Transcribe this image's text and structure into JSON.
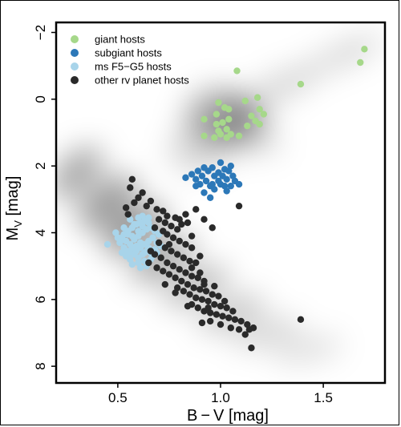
{
  "chart_data": {
    "type": "scatter",
    "xlabel": "B − V  [mag]",
    "ylabel_main": "M",
    "ylabel_sub": "V",
    "ylabel_unit": " [mag]",
    "xlim": [
      0.2,
      1.8
    ],
    "ylim": [
      8.5,
      -2.3
    ],
    "y_inverted": true,
    "x_ticks": [
      {
        "value": 0.5,
        "label": "0.5"
      },
      {
        "value": 1.0,
        "label": "1.0"
      },
      {
        "value": 1.5,
        "label": "1.5"
      }
    ],
    "y_ticks": [
      {
        "value": -2,
        "label": "−2"
      },
      {
        "value": 0,
        "label": "0"
      },
      {
        "value": 2,
        "label": "2"
      },
      {
        "value": 4,
        "label": "4"
      },
      {
        "value": 6,
        "label": "6"
      },
      {
        "value": 8,
        "label": "8"
      }
    ],
    "legend_position": "top-left",
    "background": "grey density of field stars (HR diagram)",
    "series": [
      {
        "name": "giant hosts",
        "color": "#a6d88a",
        "points": [
          [
            1.68,
            -1.1
          ],
          [
            1.7,
            -1.5
          ],
          [
            1.08,
            -0.85
          ],
          [
            1.39,
            -0.45
          ],
          [
            0.99,
            0.1
          ],
          [
            1.02,
            0.25
          ],
          [
            1.04,
            0.3
          ],
          [
            1.12,
            0.05
          ],
          [
            1.18,
            -0.05
          ],
          [
            1.19,
            0.3
          ],
          [
            0.98,
            0.45
          ],
          [
            1.21,
            0.45
          ],
          [
            0.92,
            0.6
          ],
          [
            0.98,
            0.75
          ],
          [
            1.01,
            0.7
          ],
          [
            1.04,
            0.6
          ],
          [
            1.15,
            0.5
          ],
          [
            1.17,
            0.65
          ],
          [
            1.19,
            0.75
          ],
          [
            1.13,
            0.8
          ],
          [
            0.99,
            0.95
          ],
          [
            1.03,
            0.9
          ],
          [
            1.0,
            1.05
          ],
          [
            1.05,
            1.05
          ],
          [
            0.92,
            1.1
          ],
          [
            0.97,
            1.15
          ],
          [
            1.03,
            1.15
          ],
          [
            1.09,
            1.1
          ]
        ]
      },
      {
        "name": "subgiant hosts",
        "color": "#2c78b8",
        "points": [
          [
            1.0,
            1.9
          ],
          [
            1.05,
            2.0
          ],
          [
            0.92,
            2.05
          ],
          [
            0.96,
            2.05
          ],
          [
            1.02,
            2.1
          ],
          [
            0.89,
            2.15
          ],
          [
            0.94,
            2.15
          ],
          [
            0.99,
            2.2
          ],
          [
            1.04,
            2.15
          ],
          [
            0.86,
            2.25
          ],
          [
            0.91,
            2.3
          ],
          [
            0.97,
            2.3
          ],
          [
            1.01,
            2.3
          ],
          [
            1.06,
            2.3
          ],
          [
            0.83,
            2.35
          ],
          [
            0.88,
            2.4
          ],
          [
            0.93,
            2.45
          ],
          [
            0.99,
            2.45
          ],
          [
            1.03,
            2.4
          ],
          [
            1.07,
            2.45
          ],
          [
            0.9,
            2.55
          ],
          [
            0.95,
            2.6
          ],
          [
            1.0,
            2.55
          ],
          [
            1.05,
            2.6
          ],
          [
            1.09,
            2.55
          ],
          [
            0.97,
            2.7
          ],
          [
            1.03,
            2.75
          ],
          [
            0.92,
            2.8
          ],
          [
            0.96,
            2.55
          ],
          [
            0.95,
            2.95
          ],
          [
            1.02,
            2.6
          ],
          [
            0.88,
            2.6
          ]
        ]
      },
      {
        "name": "ms F5−G5 hosts",
        "color": "#a8d4ea",
        "points": [
          [
            0.45,
            4.35
          ],
          [
            0.53,
            4.05
          ],
          [
            0.55,
            3.95
          ],
          [
            0.57,
            3.85
          ],
          [
            0.59,
            3.75
          ],
          [
            0.61,
            3.7
          ],
          [
            0.63,
            3.65
          ],
          [
            0.65,
            3.7
          ],
          [
            0.56,
            3.6
          ],
          [
            0.6,
            3.55
          ],
          [
            0.52,
            4.15
          ],
          [
            0.54,
            4.25
          ],
          [
            0.56,
            4.35
          ],
          [
            0.58,
            4.2
          ],
          [
            0.6,
            4.1
          ],
          [
            0.62,
            4.0
          ],
          [
            0.64,
            3.9
          ],
          [
            0.66,
            3.85
          ],
          [
            0.68,
            3.95
          ],
          [
            0.53,
            4.45
          ],
          [
            0.55,
            4.55
          ],
          [
            0.57,
            4.45
          ],
          [
            0.59,
            4.55
          ],
          [
            0.61,
            4.45
          ],
          [
            0.63,
            4.35
          ],
          [
            0.65,
            4.25
          ],
          [
            0.67,
            4.15
          ],
          [
            0.69,
            4.3
          ],
          [
            0.54,
            4.7
          ],
          [
            0.56,
            4.8
          ],
          [
            0.58,
            4.65
          ],
          [
            0.6,
            4.75
          ],
          [
            0.62,
            4.65
          ],
          [
            0.64,
            4.55
          ],
          [
            0.66,
            4.6
          ],
          [
            0.68,
            4.5
          ],
          [
            0.57,
            4.95
          ],
          [
            0.6,
            4.9
          ],
          [
            0.63,
            4.85
          ],
          [
            0.66,
            4.8
          ],
          [
            0.61,
            5.05
          ],
          [
            0.64,
            5.0
          ],
          [
            0.58,
            3.75
          ],
          [
            0.62,
            3.8
          ],
          [
            0.53,
            3.85
          ],
          [
            0.51,
            4.3
          ],
          [
            0.5,
            4.15
          ],
          [
            0.57,
            4.1
          ],
          [
            0.61,
            4.3
          ],
          [
            0.65,
            4.45
          ],
          [
            0.67,
            4.7
          ],
          [
            0.55,
            4.05
          ],
          [
            0.59,
            4.4
          ],
          [
            0.63,
            4.6
          ],
          [
            0.6,
            3.95
          ],
          [
            0.7,
            4.05
          ],
          [
            0.71,
            4.4
          ],
          [
            0.49,
            4.0
          ],
          [
            0.52,
            4.6
          ],
          [
            0.65,
            3.55
          ],
          [
            0.62,
            3.5
          ],
          [
            0.56,
            4.6
          ],
          [
            0.69,
            4.6
          ]
        ]
      },
      {
        "name": "other rv planet hosts",
        "color": "#2a2a2a",
        "points": [
          [
            0.57,
            2.4
          ],
          [
            0.56,
            2.65
          ],
          [
            0.6,
            2.95
          ],
          [
            0.62,
            2.8
          ],
          [
            0.66,
            3.05
          ],
          [
            0.64,
            3.2
          ],
          [
            0.58,
            3.1
          ],
          [
            0.54,
            3.25
          ],
          [
            0.55,
            3.45
          ],
          [
            0.69,
            3.3
          ],
          [
            0.72,
            3.35
          ],
          [
            0.74,
            3.5
          ],
          [
            0.78,
            3.55
          ],
          [
            0.7,
            3.6
          ],
          [
            0.73,
            3.7
          ],
          [
            0.76,
            3.8
          ],
          [
            0.79,
            3.9
          ],
          [
            0.81,
            3.75
          ],
          [
            0.84,
            3.7
          ],
          [
            0.83,
            3.45
          ],
          [
            0.88,
            3.3
          ],
          [
            0.92,
            3.6
          ],
          [
            0.96,
            3.85
          ],
          [
            1.09,
            3.2
          ],
          [
            0.72,
            3.95
          ],
          [
            0.74,
            4.05
          ],
          [
            0.77,
            4.15
          ],
          [
            0.8,
            4.25
          ],
          [
            0.83,
            4.35
          ],
          [
            0.86,
            4.45
          ],
          [
            0.7,
            4.3
          ],
          [
            0.73,
            4.45
          ],
          [
            0.76,
            4.55
          ],
          [
            0.79,
            4.65
          ],
          [
            0.82,
            4.75
          ],
          [
            0.85,
            4.85
          ],
          [
            0.88,
            4.9
          ],
          [
            0.71,
            4.75
          ],
          [
            0.74,
            4.9
          ],
          [
            0.77,
            5.0
          ],
          [
            0.8,
            5.1
          ],
          [
            0.83,
            5.2
          ],
          [
            0.86,
            5.3
          ],
          [
            0.89,
            5.35
          ],
          [
            0.92,
            5.45
          ],
          [
            0.72,
            5.15
          ],
          [
            0.75,
            5.25
          ],
          [
            0.78,
            5.35
          ],
          [
            0.81,
            5.45
          ],
          [
            0.84,
            5.55
          ],
          [
            0.87,
            5.65
          ],
          [
            0.9,
            5.7
          ],
          [
            0.93,
            5.75
          ],
          [
            0.96,
            5.85
          ],
          [
            0.99,
            5.9
          ],
          [
            0.79,
            5.65
          ],
          [
            0.82,
            5.75
          ],
          [
            0.85,
            5.85
          ],
          [
            0.88,
            5.95
          ],
          [
            0.91,
            6.0
          ],
          [
            0.94,
            6.05
          ],
          [
            0.97,
            6.15
          ],
          [
            1.0,
            6.2
          ],
          [
            1.03,
            6.25
          ],
          [
            1.06,
            6.35
          ],
          [
            0.86,
            6.15
          ],
          [
            0.89,
            6.25
          ],
          [
            0.92,
            6.35
          ],
          [
            0.95,
            6.4
          ],
          [
            0.98,
            6.45
          ],
          [
            1.01,
            6.5
          ],
          [
            1.04,
            6.55
          ],
          [
            1.07,
            6.6
          ],
          [
            1.1,
            6.65
          ],
          [
            1.13,
            6.75
          ],
          [
            0.95,
            6.65
          ],
          [
            1.0,
            6.75
          ],
          [
            1.05,
            6.85
          ],
          [
            1.09,
            6.9
          ],
          [
            1.14,
            6.9
          ],
          [
            1.16,
            6.85
          ],
          [
            1.12,
            7.05
          ],
          [
            1.15,
            7.45
          ],
          [
            1.39,
            6.6
          ],
          [
            0.91,
            6.7
          ],
          [
            0.66,
            4.55
          ],
          [
            0.68,
            4.65
          ],
          [
            0.65,
            4.9
          ],
          [
            0.69,
            5.05
          ],
          [
            0.75,
            4.35
          ],
          [
            0.86,
            5.05
          ],
          [
            0.9,
            5.2
          ],
          [
            0.92,
            5.55
          ],
          [
            0.78,
            5.8
          ],
          [
            0.94,
            6.25
          ],
          [
            0.97,
            5.6
          ],
          [
            1.02,
            6.05
          ],
          [
            0.84,
            6.2
          ],
          [
            0.73,
            5.55
          ],
          [
            0.68,
            3.85
          ],
          [
            0.8,
            3.6
          ],
          [
            0.86,
            4.1
          ],
          [
            0.9,
            4.7
          ]
        ]
      }
    ]
  }
}
